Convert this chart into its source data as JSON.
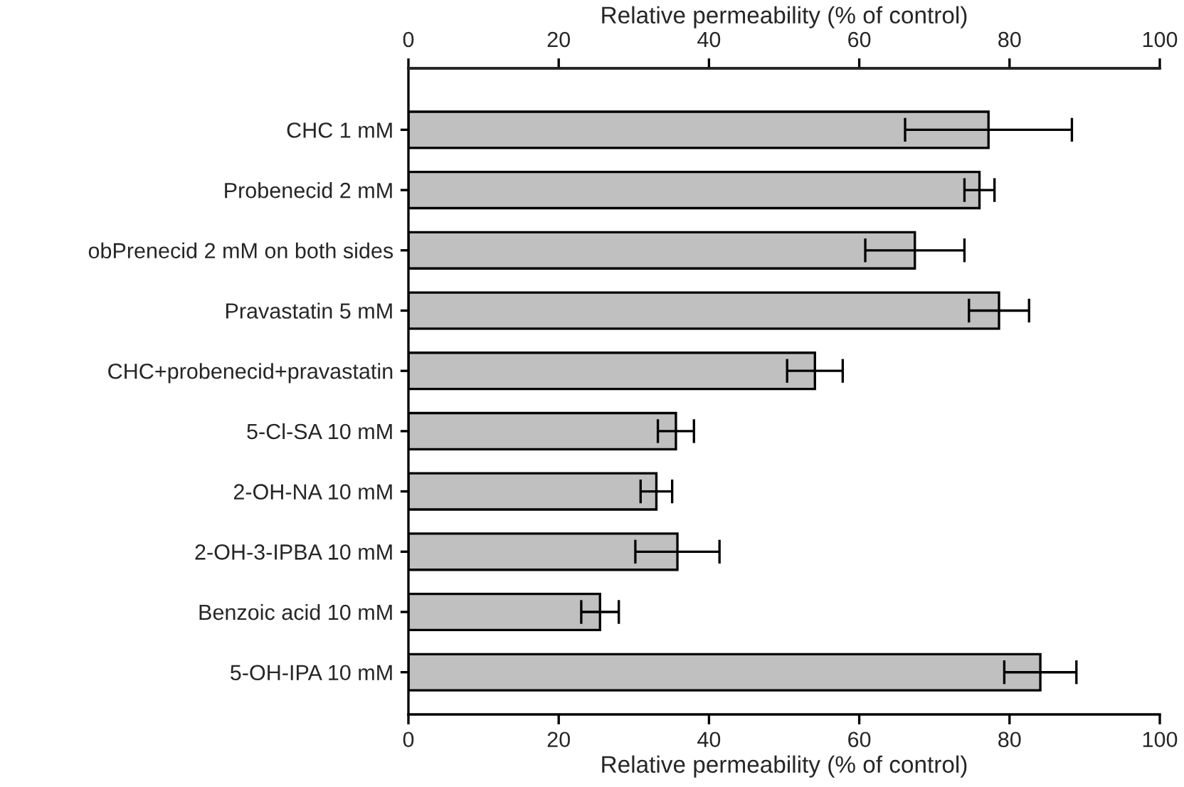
{
  "chart_data": {
    "type": "bar",
    "orientation": "horizontal",
    "xlabel": "Relative permeability (% of control)",
    "x2label": "Relative permeability (% of control)",
    "categories": [
      "CHC 1 mM",
      "Probenecid 2 mM",
      "obPrenecid 2 mM on both sides",
      "Pravastatin 5 mM",
      "CHC+probenecid+pravastatin",
      "5-Cl-SA 10 mM",
      "2-OH-NA 10 mM",
      "2-OH-3-IPBA 10 mM",
      "Benzoic acid 10 mM",
      "5-OH-IPA 10 mM"
    ],
    "values": [
      77.2,
      76.0,
      67.4,
      78.6,
      54.1,
      35.6,
      33.0,
      35.8,
      25.5,
      84.1
    ],
    "errors": [
      11.1,
      2.0,
      6.6,
      4.0,
      3.7,
      2.4,
      2.1,
      5.6,
      2.5,
      4.8
    ],
    "color": "#c0c0c0",
    "xlim": [
      0,
      100
    ],
    "xticks": [
      0,
      20,
      40,
      60,
      80,
      100
    ],
    "x2lim": [
      0,
      100
    ],
    "x2ticks": [
      0,
      20,
      40,
      60,
      80,
      100
    ],
    "grid": false,
    "legend": false
  }
}
